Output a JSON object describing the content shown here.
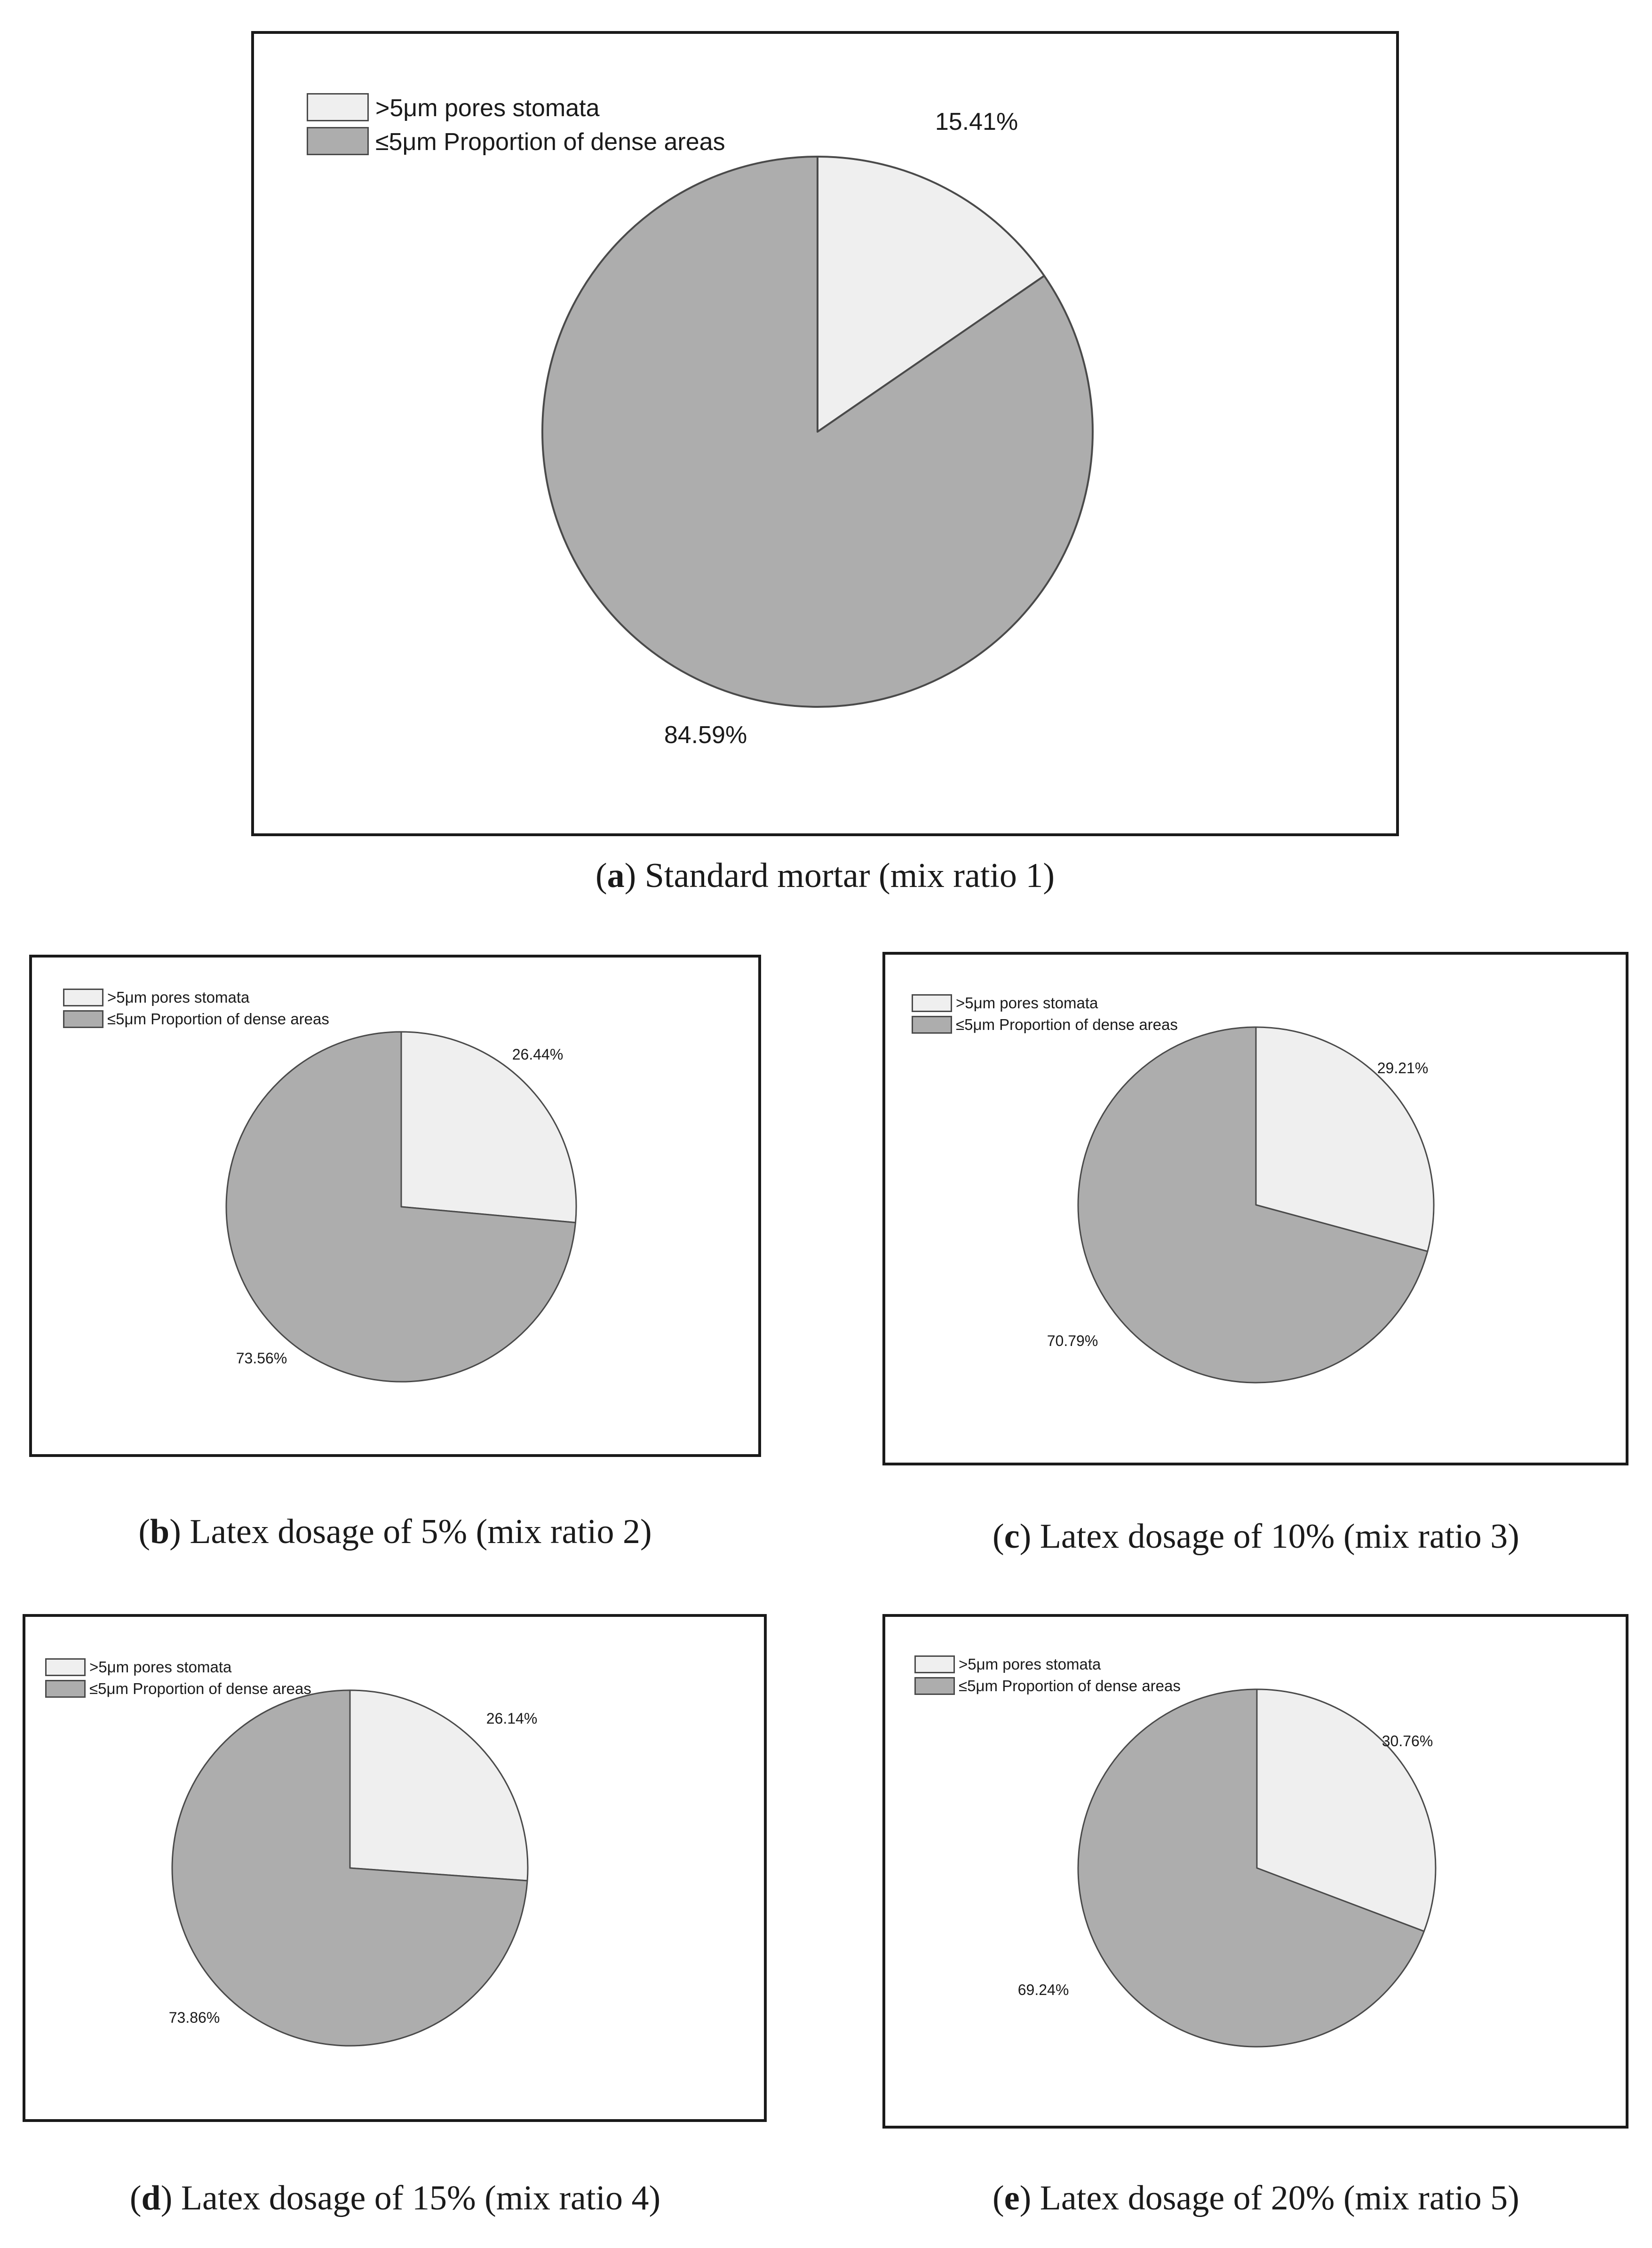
{
  "colors": {
    "pores": "#efefef",
    "dense": "#adadad",
    "outline": "#4a4a4a",
    "frame": "#1a1a1a"
  },
  "legend": {
    "pores_label": ">5μm  pores stomata",
    "dense_label": "≤5μm Proportion of dense areas"
  },
  "chart_data": [
    {
      "type": "pie",
      "panel_letter": "a",
      "caption": "Standard mortar (mix ratio 1)",
      "categories": [
        ">5μm  pores stomata",
        "≤5μm Proportion of dense areas"
      ],
      "values": [
        15.41,
        84.59
      ],
      "value_labels": [
        "15.41%",
        "84.59%"
      ]
    },
    {
      "type": "pie",
      "panel_letter": "b",
      "caption": "Latex dosage of 5% (mix ratio 2)",
      "categories": [
        ">5μm  pores stomata",
        "≤5μm Proportion of dense areas"
      ],
      "values": [
        26.44,
        73.56
      ],
      "value_labels": [
        "26.44%",
        "73.56%"
      ]
    },
    {
      "type": "pie",
      "panel_letter": "c",
      "caption": "Latex dosage of 10% (mix ratio 3)",
      "categories": [
        ">5μm  pores stomata",
        "≤5μm Proportion of dense areas"
      ],
      "values": [
        29.21,
        70.79
      ],
      "value_labels": [
        "29.21%",
        "70.79%"
      ]
    },
    {
      "type": "pie",
      "panel_letter": "d",
      "caption": "Latex dosage of 15% (mix ratio 4)",
      "categories": [
        ">5μm  pores stomata",
        "≤5μm Proportion of dense areas"
      ],
      "values": [
        26.14,
        73.86
      ],
      "value_labels": [
        "26.14%",
        "73.86%"
      ]
    },
    {
      "type": "pie",
      "panel_letter": "e",
      "caption": "Latex dosage of 20% (mix ratio 5)",
      "categories": [
        ">5μm  pores stomata",
        "≤5μm Proportion of dense areas"
      ],
      "values": [
        30.76,
        69.24
      ],
      "value_labels": [
        "30.76%",
        "69.24%"
      ]
    }
  ]
}
